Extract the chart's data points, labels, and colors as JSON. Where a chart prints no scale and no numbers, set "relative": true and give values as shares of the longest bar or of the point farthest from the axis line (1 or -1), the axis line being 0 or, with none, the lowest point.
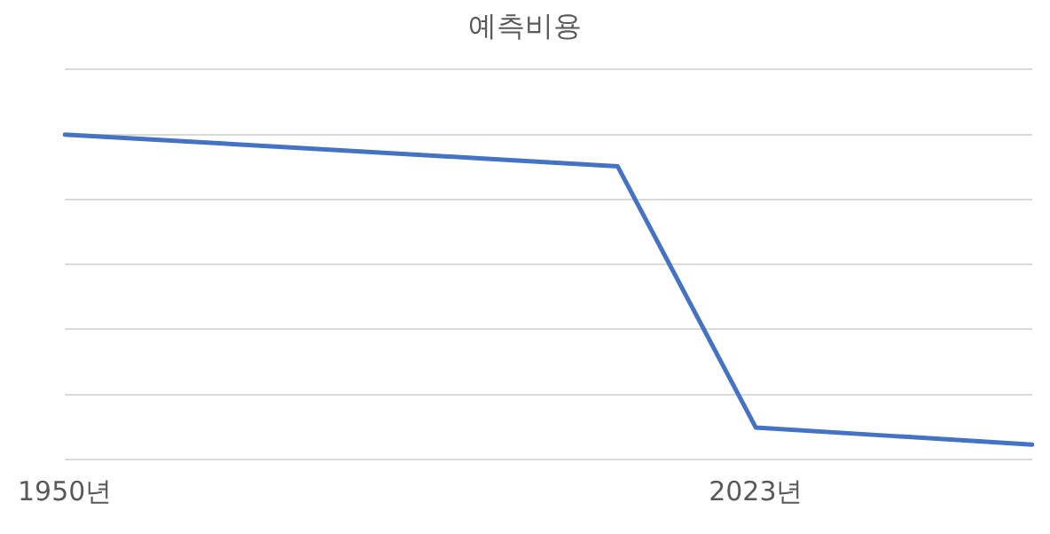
{
  "chart_data": {
    "type": "line",
    "title": "예측비용",
    "categories": [
      "1950년",
      null,
      null,
      null,
      null,
      "2023년",
      null,
      null
    ],
    "series": [
      {
        "color": "#4472c4",
        "values": [
          1,
          0.976,
          0.951,
          0.927,
          0.902,
          0.098,
          0.072,
          0.046
        ]
      }
    ],
    "relative": true,
    "grid": "y",
    "legend": false,
    "marker": "none"
  }
}
